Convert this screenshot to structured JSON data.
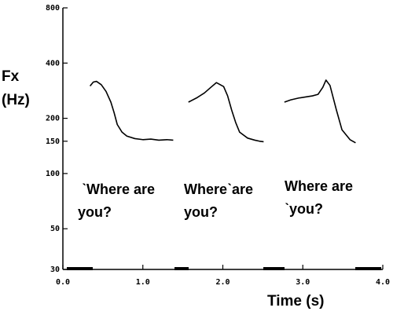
{
  "chart_data": {
    "type": "line",
    "ylabel": [
      "Fx",
      "(Hz)"
    ],
    "xlabel": "Time (s)",
    "log_y": true,
    "xlim": [
      0,
      4
    ],
    "ylim": [
      30,
      800
    ],
    "xticks": [
      {
        "value": 0,
        "label": "0.0"
      },
      {
        "value": 1,
        "label": "1.0"
      },
      {
        "value": 2,
        "label": "2.0"
      },
      {
        "value": 3,
        "label": "3.0"
      },
      {
        "value": 4,
        "label": "4.0"
      }
    ],
    "yticks": [
      30,
      50,
      100,
      150,
      200,
      400,
      800
    ],
    "series": [
      {
        "color": "#000000",
        "x": [
          0.34,
          0.38,
          0.42,
          0.48,
          0.54,
          0.6,
          0.64,
          0.68,
          0.74,
          0.8,
          0.9,
          1.0,
          1.1,
          1.2,
          1.3,
          1.38
        ],
        "values": [
          300,
          315,
          318,
          305,
          280,
          245,
          215,
          185,
          168,
          160,
          155,
          153,
          154,
          152,
          153,
          152
        ]
      },
      {
        "color": "#000000",
        "x": [
          1.57,
          1.67,
          1.77,
          1.85,
          1.92,
          2.01,
          2.06,
          2.11,
          2.16,
          2.21,
          2.31,
          2.4,
          2.46,
          2.51
        ],
        "values": [
          245,
          258,
          275,
          295,
          313,
          298,
          265,
          222,
          190,
          168,
          156,
          152,
          150,
          149
        ]
      },
      {
        "color": "#000000",
        "x": [
          2.77,
          2.85,
          2.95,
          3.05,
          3.12,
          3.19,
          3.25,
          3.29,
          3.34,
          3.42,
          3.49,
          3.59,
          3.66
        ],
        "values": [
          245,
          252,
          258,
          262,
          265,
          270,
          295,
          323,
          302,
          222,
          173,
          153,
          147
        ]
      }
    ],
    "annotations": [
      [
        "ˋWhere are",
        "you?"
      ],
      [
        "Whereˋare",
        "you?"
      ],
      [
        "Where are",
        "ˋyou?"
      ]
    ]
  }
}
